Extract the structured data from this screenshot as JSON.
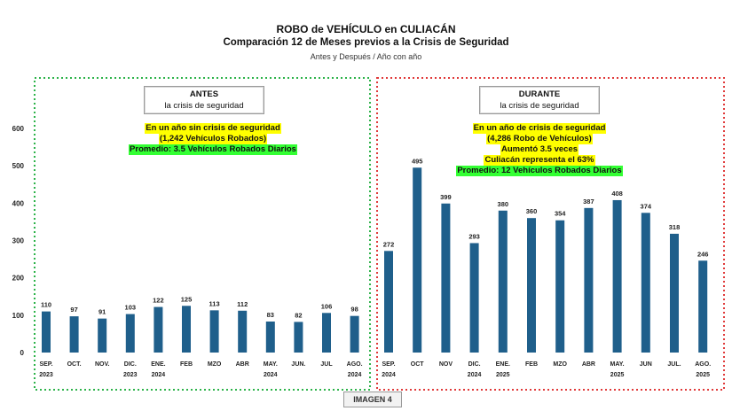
{
  "header": {
    "title": "ROBO de VEHÍCULO en CULIACÁN",
    "subtitle": "Comparación 12 de Meses previos a la Crisis de Seguridad",
    "caption": "Antes y Después / Año con año"
  },
  "footer_label": "IMAGEN 4",
  "panels": {
    "before": {
      "title": "ANTES",
      "subtitle": "la crisis de seguridad",
      "note_line1": "En un año sin crisis de seguridad",
      "note_line2": "(1,242 Vehículos Robados)",
      "note_line3": "Promedio: 3.5 Vehículos Robados Diarios"
    },
    "during": {
      "title": "DURANTE",
      "subtitle": "la crisis de seguridad",
      "note_line1": "En un año de crisis de seguridad",
      "note_line2": "(4,286 Robo de Vehículos)",
      "note_line3": "Aumentó 3.5 veces",
      "note_line4": "Culiacán representa el 63%",
      "note_line5": "Promedio: 12 Vehículos Robados Diarios"
    }
  },
  "colors": {
    "bar": "#1f5f8b",
    "before_border": "#2db34a",
    "during_border": "#e03a3a"
  },
  "chart_data": {
    "type": "bar",
    "ylim": [
      0,
      600
    ],
    "yticks": [
      0,
      100,
      200,
      300,
      400,
      500,
      600
    ],
    "grid": false,
    "categories": [
      [
        "SEP.",
        "2023"
      ],
      [
        "OCT.",
        ""
      ],
      [
        "NOV.",
        ""
      ],
      [
        "DIC.",
        "2023"
      ],
      [
        "ENE.",
        "2024"
      ],
      [
        "FEB",
        ""
      ],
      [
        "MZO",
        ""
      ],
      [
        "ABR",
        ""
      ],
      [
        "MAY.",
        "2024"
      ],
      [
        "JUN.",
        ""
      ],
      [
        "JUL",
        ""
      ],
      [
        "AGO.",
        "2024"
      ],
      [
        "SEP.",
        "2024"
      ],
      [
        "OCT",
        ""
      ],
      [
        "NOV",
        ""
      ],
      [
        "DIC.",
        "2024"
      ],
      [
        "ENE.",
        "2025"
      ],
      [
        "FEB",
        ""
      ],
      [
        "MZO",
        ""
      ],
      [
        "ABR",
        ""
      ],
      [
        "MAY.",
        "2025"
      ],
      [
        "JUN",
        ""
      ],
      [
        "JUL.",
        ""
      ],
      [
        "AGO.",
        "2025"
      ]
    ],
    "values": [
      110,
      97,
      91,
      103,
      122,
      125,
      113,
      112,
      83,
      82,
      106,
      98,
      272,
      495,
      399,
      293,
      380,
      360,
      354,
      387,
      408,
      374,
      318,
      246
    ],
    "groups": [
      {
        "name": "ANTES",
        "from": 0,
        "to": 11
      },
      {
        "name": "DURANTE",
        "from": 12,
        "to": 23
      }
    ]
  }
}
